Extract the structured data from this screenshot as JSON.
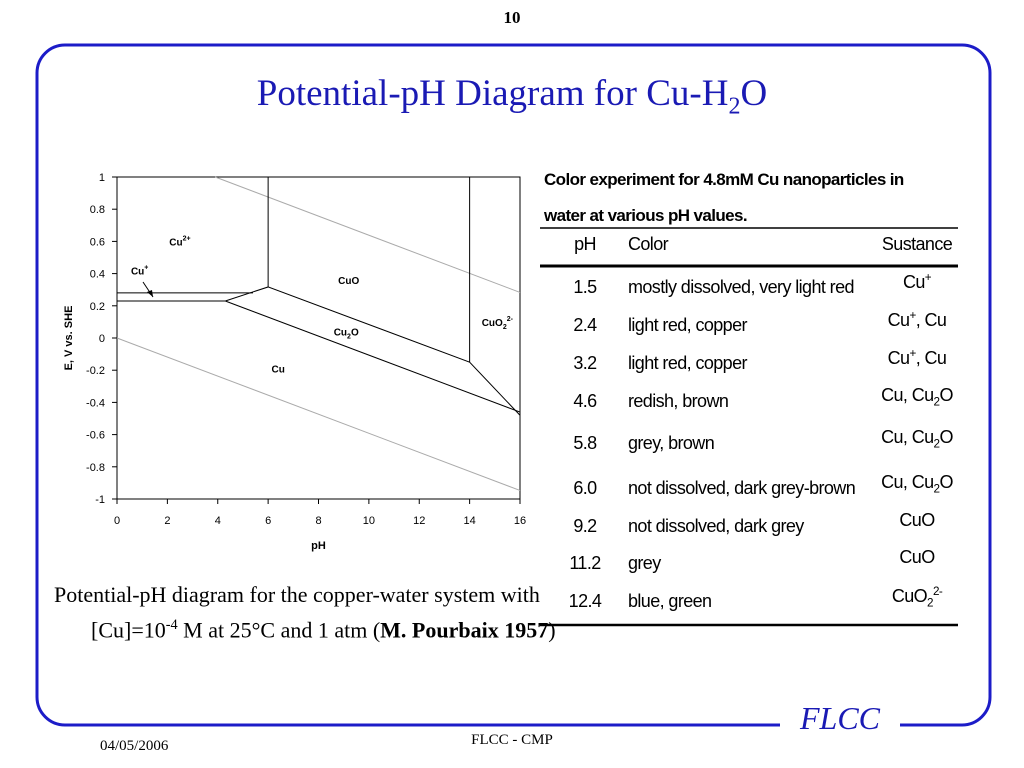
{
  "page_number": "10",
  "title": [
    "Potential-pH Diagram for Cu-H",
    {
      "sub": "2"
    },
    "O"
  ],
  "chart_data": {
    "type": "line",
    "xlabel": "pH",
    "ylabel": "E, V vs. SHE",
    "xlim": [
      0,
      16
    ],
    "ylim": [
      -1,
      1
    ],
    "xticks": [
      0,
      2,
      4,
      6,
      8,
      10,
      12,
      14,
      16
    ],
    "yticks": [
      1,
      0.8,
      0.6,
      0.4,
      0.2,
      0,
      -0.2,
      -0.4,
      -0.6,
      -0.8,
      -1
    ],
    "series": [
      {
        "color": "#aaaaaa",
        "x": [
          3.9,
          16
        ],
        "values": [
          1,
          0.283
        ]
      },
      {
        "color": "#aaaaaa",
        "x": [
          0,
          16
        ],
        "values": [
          0,
          -0.947
        ]
      },
      {
        "color": "#000000",
        "x": [
          0,
          5.4
        ],
        "values": [
          0.28,
          0.28
        ]
      },
      {
        "color": "#000000",
        "x": [
          0,
          4.3
        ],
        "values": [
          0.23,
          0.23
        ]
      },
      {
        "color": "#000000",
        "x": [
          4.3,
          6,
          14,
          16
        ],
        "values": [
          0.23,
          0.317,
          -0.15,
          -0.48
        ]
      },
      {
        "color": "#000000",
        "x": [
          6,
          6
        ],
        "values": [
          1,
          0.317
        ]
      },
      {
        "color": "#000000",
        "x": [
          14,
          14
        ],
        "values": [
          1,
          -0.15
        ]
      },
      {
        "color": "#000000",
        "x": [
          4.3,
          16
        ],
        "values": [
          0.23,
          -0.46
        ]
      }
    ],
    "annotations": [
      {
        "text": [
          "Cu",
          {
            "sup": "2+"
          }
        ],
        "x": 2.5,
        "y": 0.6
      },
      {
        "text": [
          "Cu",
          {
            "sup": "+"
          }
        ],
        "x": 0.9,
        "y": 0.42
      },
      {
        "text": [
          "CuO"
        ],
        "x": 9.2,
        "y": 0.36
      },
      {
        "text": [
          "Cu",
          {
            "sub": "2"
          },
          "O"
        ],
        "x": 9.1,
        "y": 0.04
      },
      {
        "text": [
          "CuO",
          {
            "sub": "2"
          },
          {
            "sup": "2-"
          }
        ],
        "x": 15.1,
        "y": 0.1
      },
      {
        "text": [
          "Cu"
        ],
        "x": 6.4,
        "y": -0.19
      }
    ]
  },
  "caption": [
    "Potential-pH diagram for the copper-water system  with [Cu]=10",
    {
      "sup": "-4"
    },
    " M at 25°C and 1 atm  (",
    {
      "b": "M. Pourbaix 1957"
    },
    ")"
  ],
  "table": {
    "caption": "Color experiment for 4.8mM Cu nanoparticles in water at various pH values.",
    "header": [
      "pH",
      "Color",
      "Sustance"
    ],
    "rows": [
      [
        "1.5",
        "mostly dissolved, very light red",
        [
          "Cu",
          {
            "sup": "+"
          }
        ]
      ],
      [
        "2.4",
        "light red, copper",
        [
          "Cu",
          {
            "sup": "+"
          },
          ", Cu"
        ]
      ],
      [
        "3.2",
        "light red, copper",
        [
          "Cu",
          {
            "sup": "+"
          },
          ", Cu"
        ]
      ],
      [
        "4.6",
        "redish, brown",
        [
          "Cu, Cu",
          {
            "sub": "2"
          },
          "O"
        ]
      ],
      [
        "5.8",
        "grey, brown",
        [
          "Cu, Cu",
          {
            "sub": "2"
          },
          "O"
        ]
      ],
      [
        "6.0",
        "not dissolved, dark grey-brown",
        [
          "Cu, Cu",
          {
            "sub": "2"
          },
          "O"
        ]
      ],
      [
        "9.2",
        "not dissolved, dark grey",
        [
          "CuO"
        ]
      ],
      [
        "11.2",
        "grey",
        [
          "CuO"
        ]
      ],
      [
        "12.4",
        "blue, green",
        [
          "CuO",
          {
            "sub": "2"
          },
          {
            "sup": "2-"
          }
        ]
      ]
    ]
  },
  "footer": {
    "date": "04/05/2006",
    "center": "FLCC - CMP",
    "logo": "FLCC"
  }
}
